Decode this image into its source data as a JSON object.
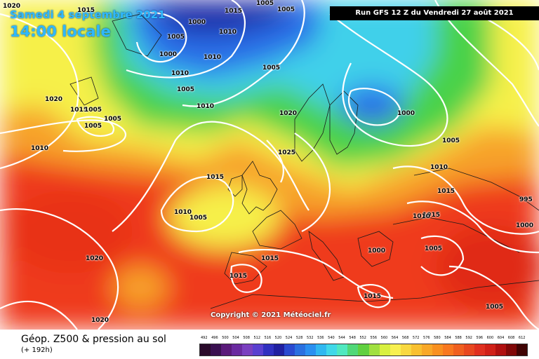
{
  "header": {
    "date": "Samedi 4 septembre 2021",
    "time": "14:00 locale",
    "run": "Run GFS 12 Z du Vendredi 27 août 2021"
  },
  "map": {
    "copyright": "Copyright © 2021 Météociel.fr",
    "pressure_labels": [
      "1020",
      "1015",
      "1005",
      "1005",
      "1000",
      "1010",
      "1005",
      "1000",
      "1010",
      "1005",
      "1015",
      "1010",
      "1005",
      "1010",
      "1005",
      "1005",
      "1020",
      "1015",
      "1005",
      "1010",
      "1020",
      "1025",
      "1000",
      "1005",
      "1010",
      "1015",
      "995",
      "1000",
      "1015",
      "1010",
      "1005",
      "1015",
      "1010",
      "1005",
      "1000",
      "1020",
      "1015",
      "1015",
      "1020",
      "1005",
      "1015"
    ],
    "colors": {
      "deep_blue": "#1a2aa8",
      "blue": "#2a6ee8",
      "cyan": "#3fd0ea",
      "green": "#4ad24a",
      "yellow": "#f6f04a",
      "orange": "#f7a22a",
      "red": "#ef3a1e",
      "isobar": "#ffffff"
    }
  },
  "footer": {
    "title": "Géop. Z500 & pression au sol",
    "subtitle": "(+ 192h)",
    "scale_values": [
      "492",
      "496",
      "500",
      "504",
      "508",
      "512",
      "516",
      "520",
      "524",
      "528",
      "532",
      "536",
      "540",
      "544",
      "548",
      "552",
      "556",
      "560",
      "564",
      "568",
      "572",
      "576",
      "580",
      "584",
      "588",
      "592",
      "596",
      "600",
      "604",
      "608",
      "612"
    ],
    "scale_colors": [
      "#2a0a2a",
      "#3a1050",
      "#5a1a7a",
      "#6a2aa0",
      "#7a40c0",
      "#5a40d0",
      "#3030c0",
      "#2020a0",
      "#2a4ad0",
      "#2a70e0",
      "#2a90f0",
      "#30b8f0",
      "#40d8e8",
      "#50e8c0",
      "#50d878",
      "#60d040",
      "#a0e040",
      "#d8f040",
      "#f8f050",
      "#f8d840",
      "#f8c030",
      "#f8a828",
      "#f89020",
      "#f87820",
      "#f06020",
      "#e84820",
      "#e03020",
      "#d02018",
      "#b01010",
      "#800808",
      "#400404"
    ]
  }
}
